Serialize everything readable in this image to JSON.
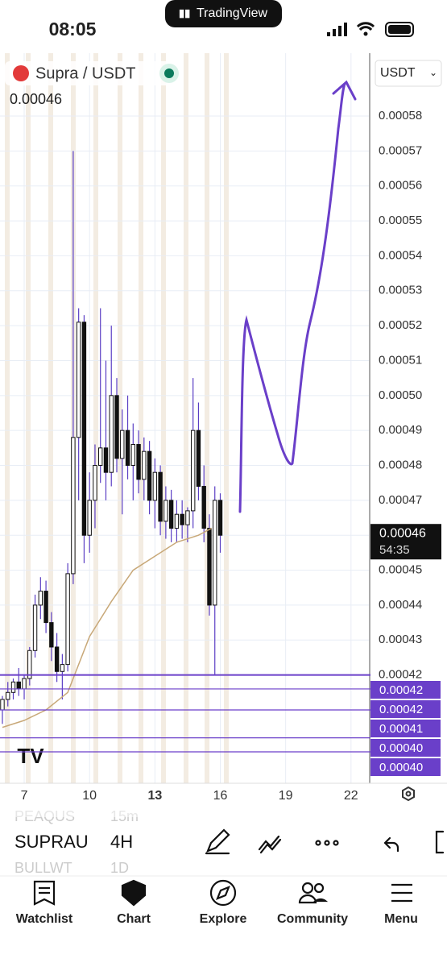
{
  "status_bar": {
    "time": "08:05",
    "app": "TradingView"
  },
  "symbol_header": {
    "name": "Supra / USDT",
    "value": 0.00046,
    "currency": "USDT"
  },
  "chart_data": {
    "type": "candlestick",
    "candles": {
      "x": [
        6,
        6.25,
        6.5,
        6.75,
        7,
        7.25,
        7.5,
        7.75,
        8,
        8.25,
        8.5,
        8.75,
        9,
        9.25,
        9.5,
        9.75,
        10,
        10.25,
        10.5,
        10.75,
        11,
        11.25,
        11.5,
        11.75,
        12,
        12.25,
        12.5,
        12.75,
        13,
        13.25,
        13.5,
        13.75,
        14,
        14.25,
        14.5,
        14.75,
        15,
        15.25,
        15.5,
        15.75,
        16
      ],
      "open": [
        0.00041,
        0.000413,
        0.000415,
        0.000418,
        0.000416,
        0.000419,
        0.000427,
        0.00044,
        0.000444,
        0.000435,
        0.000428,
        0.000421,
        0.000423,
        0.000449,
        0.000488,
        0.000521,
        0.00046,
        0.00047,
        0.00048,
        0.000485,
        0.000478,
        0.0005,
        0.000482,
        0.00049,
        0.00048,
        0.000486,
        0.000476,
        0.000484,
        0.00047,
        0.000478,
        0.000464,
        0.00047,
        0.000462,
        0.000466,
        0.000463,
        0.000467,
        0.00049,
        0.000474,
        0.000462,
        0.00044,
        0.00047
      ],
      "high": [
        0.000414,
        0.000418,
        0.000419,
        0.000422,
        0.00042,
        0.000428,
        0.000443,
        0.000448,
        0.000447,
        0.000438,
        0.000432,
        0.000426,
        0.000452,
        0.00057,
        0.000525,
        0.000523,
        0.000478,
        0.000486,
        0.000525,
        0.00051,
        0.00052,
        0.000505,
        0.000496,
        0.0005,
        0.000492,
        0.00049,
        0.000488,
        0.000487,
        0.000482,
        0.00048,
        0.000474,
        0.000473,
        0.00047,
        0.00047,
        0.000468,
        0.000505,
        0.000498,
        0.00048,
        0.000466,
        0.000474,
        0.000472
      ],
      "low": [
        0.000406,
        0.000411,
        0.000413,
        0.000414,
        0.000413,
        0.000417,
        0.000425,
        0.000436,
        0.000432,
        0.000424,
        0.000418,
        0.000413,
        0.000421,
        0.000446,
        0.00047,
        0.000452,
        0.000455,
        0.000462,
        0.000475,
        0.00047,
        0.000474,
        0.000478,
        0.000466,
        0.000476,
        0.00047,
        0.000472,
        0.00047,
        0.000466,
        0.000462,
        0.00046,
        0.000459,
        0.000458,
        0.000458,
        0.000459,
        0.000458,
        0.000462,
        0.00047,
        0.000458,
        0.000437,
        0.00042,
        0.000455
      ],
      "close": [
        0.000413,
        0.000415,
        0.000418,
        0.000416,
        0.000419,
        0.000427,
        0.00044,
        0.000444,
        0.000435,
        0.000428,
        0.000421,
        0.000423,
        0.000449,
        0.000488,
        0.000521,
        0.00046,
        0.00047,
        0.00048,
        0.000485,
        0.000478,
        0.0005,
        0.000482,
        0.00049,
        0.00048,
        0.000486,
        0.000476,
        0.000484,
        0.00047,
        0.000478,
        0.000464,
        0.00047,
        0.000462,
        0.000466,
        0.000463,
        0.000467,
        0.00049,
        0.000474,
        0.000462,
        0.00044,
        0.00047,
        0.00046
      ]
    },
    "up_color": "#ffffff",
    "down_color": "#111111",
    "wick_color": "#5b3fc4",
    "moving_average": {
      "color": "#c8a878",
      "x": [
        6,
        7,
        8,
        9,
        10,
        11,
        12,
        13,
        14,
        15,
        15.6
      ],
      "values": [
        0.000405,
        0.000407,
        0.00041,
        0.000415,
        0.000431,
        0.000441,
        0.00045,
        0.000454,
        0.000458,
        0.00046,
        0.000462
      ]
    },
    "xlim": [
      5.89,
      22.82
    ],
    "xticks": [
      7,
      10,
      13,
      16,
      19,
      22
    ],
    "ylim": [
      0.000389,
      0.000598
    ],
    "yticks": [
      0.00042,
      0.00043,
      0.00044,
      0.00045,
      0.00046,
      0.00047,
      0.00048,
      0.00049,
      {
        "value": 0.0005,
        "label": "0.00050"
      },
      0.00051,
      0.00052,
      0.00053,
      0.00054,
      0.00055,
      0.00056,
      0.00057,
      0.00058
    ],
    "grid": true,
    "last_price": 0.00046,
    "countdown": "54:35",
    "price_lines": [
      {
        "value": 0.00042,
        "label": "0.00042"
      },
      {
        "value": 0.000416,
        "label": "0.00042"
      },
      {
        "value": 0.00041,
        "label": "0.00041"
      },
      {
        "value": 0.000402,
        "label": "0.00040"
      },
      {
        "value": 0.000398,
        "label": "0.00040"
      }
    ],
    "price_line_color": "#6a3fc9"
  },
  "toolbar": {
    "symbols": [
      "PEAQUS",
      "SUPRAU",
      "BULLWT"
    ],
    "intervals": [
      "15m",
      "4H",
      "1D"
    ]
  },
  "nav": [
    "Watchlist",
    "Chart",
    "Explore",
    "Community",
    "Menu"
  ]
}
